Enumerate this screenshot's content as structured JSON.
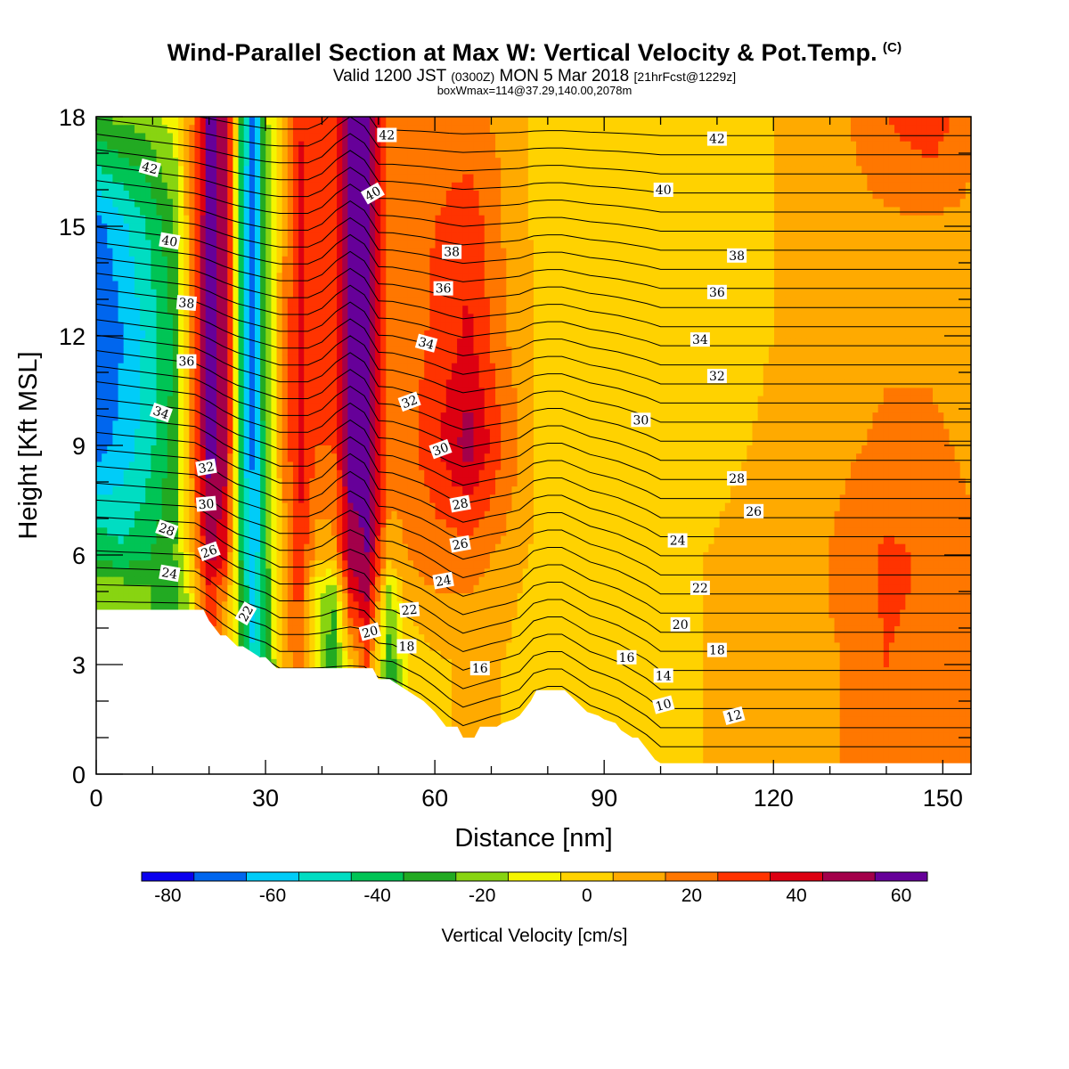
{
  "header": {
    "title": "Wind-Parallel Section at Max W: Vertical Velocity & Pot.Temp.",
    "title_mark": "(C)",
    "valid_prefix": "Valid 1200 JST",
    "valid_utc": "(0300Z)",
    "valid_date": "MON 5 Mar 2018",
    "valid_fcst": "[21hrFcst@1229z]",
    "box_info": "boxWmax=114@37.29,140.00,2078m"
  },
  "colorbar": {
    "title": "Vertical Velocity [cm/s]",
    "colors": [
      "#0a00ee",
      "#0066ee",
      "#00ccf8",
      "#00ddc2",
      "#00c455",
      "#22aa22",
      "#88d411",
      "#f5f500",
      "#ffd200",
      "#ffaa00",
      "#ff7700",
      "#ff3300",
      "#dd0011",
      "#a3004a",
      "#660099"
    ],
    "tick_labels": [
      "-80",
      "-60",
      "-40",
      "-20",
      "0",
      "20",
      "40",
      "60"
    ]
  },
  "chart_data": {
    "type": "heatmap",
    "title": "Wind-Parallel Section at Max W: Vertical Velocity & Pot.Temp.",
    "xlabel": "Distance [nm]",
    "ylabel": "Height [Kft MSL]",
    "xlim": [
      0,
      155
    ],
    "ylim": [
      0,
      18
    ],
    "x_ticks": [
      "0",
      "30",
      "60",
      "90",
      "120",
      "150"
    ],
    "y_ticks": [
      "0",
      "3",
      "6",
      "9",
      "12",
      "15",
      "18"
    ],
    "color_levels": [
      -80,
      -70,
      -60,
      -50,
      -40,
      -30,
      -20,
      -10,
      0,
      10,
      20,
      30,
      40,
      50,
      60,
      70
    ],
    "velocity_field_cm_s": {
      "x": [
        0,
        4,
        9,
        14,
        17,
        20,
        23,
        26,
        28,
        30,
        33,
        36,
        39,
        42,
        45,
        48,
        52,
        55,
        60,
        66,
        72,
        78,
        85,
        92,
        100,
        108,
        116,
        124,
        132,
        140,
        148,
        155
      ],
      "y": [
        0,
        3,
        5,
        6,
        9,
        12,
        15,
        18
      ],
      "rows": [
        [
          -10,
          -12,
          -16,
          -22,
          -5,
          30,
          10,
          -25,
          -55,
          -30,
          10,
          30,
          -5,
          -30,
          8,
          30,
          -28,
          0,
          8,
          12,
          10,
          2,
          0,
          2,
          5,
          10,
          12,
          15,
          20,
          30,
          25,
          20
        ],
        [
          -10,
          -12,
          -16,
          -22,
          -5,
          30,
          10,
          -25,
          -55,
          -30,
          10,
          30,
          -5,
          -30,
          8,
          30,
          -28,
          0,
          8,
          12,
          10,
          2,
          0,
          2,
          5,
          10,
          12,
          15,
          20,
          30,
          25,
          20
        ],
        [
          -10,
          -12,
          -18,
          -30,
          0,
          40,
          20,
          -30,
          -58,
          -30,
          15,
          35,
          -5,
          -20,
          40,
          55,
          -15,
          15,
          20,
          20,
          15,
          5,
          0,
          2,
          5,
          10,
          12,
          15,
          22,
          32,
          28,
          22
        ],
        [
          -30,
          -38,
          -32,
          -20,
          10,
          55,
          40,
          -40,
          -60,
          -25,
          15,
          40,
          15,
          15,
          55,
          60,
          15,
          20,
          25,
          25,
          18,
          8,
          2,
          2,
          5,
          10,
          12,
          15,
          22,
          32,
          28,
          22
        ],
        [
          -65,
          -58,
          -45,
          -25,
          25,
          65,
          55,
          -45,
          -65,
          -20,
          18,
          45,
          30,
          30,
          65,
          65,
          25,
          25,
          38,
          55,
          30,
          10,
          2,
          2,
          5,
          8,
          10,
          15,
          18,
          22,
          22,
          18
        ],
        [
          -70,
          -62,
          -48,
          -28,
          25,
          65,
          55,
          -45,
          -68,
          -18,
          18,
          45,
          30,
          30,
          65,
          65,
          25,
          25,
          32,
          42,
          22,
          8,
          2,
          0,
          2,
          5,
          8,
          12,
          15,
          18,
          18,
          15
        ],
        [
          -65,
          -55,
          -40,
          -20,
          25,
          65,
          55,
          -45,
          -68,
          -18,
          15,
          45,
          30,
          30,
          65,
          60,
          25,
          25,
          30,
          38,
          20,
          8,
          2,
          0,
          2,
          5,
          8,
          12,
          15,
          18,
          18,
          18
        ],
        [
          -20,
          -18,
          -15,
          -5,
          20,
          65,
          55,
          -40,
          -65,
          -15,
          15,
          40,
          30,
          30,
          65,
          60,
          22,
          22,
          22,
          22,
          18,
          8,
          2,
          0,
          2,
          5,
          8,
          12,
          18,
          30,
          38,
          22
        ]
      ]
    },
    "terrain_kft": {
      "x": [
        0,
        16,
        19,
        20,
        22,
        23,
        25,
        26,
        29,
        30,
        32,
        33,
        38,
        46,
        49,
        50,
        52,
        55,
        58,
        60,
        62,
        64,
        65,
        67,
        68,
        71,
        72,
        74,
        75,
        76,
        77,
        78,
        80,
        83,
        85,
        87,
        89,
        90,
        92,
        93,
        95,
        96,
        97,
        98,
        99,
        100,
        155
      ],
      "height": [
        4.5,
        4.5,
        4.5,
        4.2,
        3.8,
        3.8,
        3.5,
        3.5,
        3.2,
        3.2,
        2.9,
        2.9,
        2.9,
        2.9,
        2.9,
        2.6,
        2.6,
        2.3,
        2.0,
        1.7,
        1.3,
        1.3,
        1.0,
        1.0,
        1.3,
        1.3,
        1.4,
        1.5,
        1.6,
        1.8,
        2.0,
        2.3,
        2.3,
        2.3,
        2.0,
        1.7,
        1.6,
        1.5,
        1.4,
        1.2,
        1.0,
        1.0,
        0.8,
        0.6,
        0.4,
        0.3,
        0.3
      ]
    },
    "theta_contours_label": "Pot.Temp.",
    "theta_contour_labels": [
      {
        "x": 9.5,
        "y": 16.6,
        "v": "42",
        "r": 15
      },
      {
        "x": 13.0,
        "y": 14.6,
        "v": "40",
        "r": 10
      },
      {
        "x": 16.0,
        "y": 12.9,
        "v": "38",
        "r": 5
      },
      {
        "x": 16.0,
        "y": 11.3,
        "v": "36",
        "r": 0
      },
      {
        "x": 11.5,
        "y": 9.9,
        "v": "34",
        "r": 20
      },
      {
        "x": 19.5,
        "y": 8.4,
        "v": "32",
        "r": -10
      },
      {
        "x": 19.5,
        "y": 7.4,
        "v": "30",
        "r": -5
      },
      {
        "x": 12.5,
        "y": 6.7,
        "v": "28",
        "r": 20
      },
      {
        "x": 20.0,
        "y": 6.1,
        "v": "26",
        "r": -20
      },
      {
        "x": 13.0,
        "y": 5.5,
        "v": "24",
        "r": 10
      },
      {
        "x": 26.5,
        "y": 4.4,
        "v": "22",
        "r": -60
      },
      {
        "x": 51.5,
        "y": 17.5,
        "v": "42",
        "r": 0
      },
      {
        "x": 49.0,
        "y": 15.9,
        "v": "40",
        "r": -30
      },
      {
        "x": 63.0,
        "y": 14.3,
        "v": "38",
        "r": 0
      },
      {
        "x": 61.5,
        "y": 13.3,
        "v": "36",
        "r": 0
      },
      {
        "x": 58.5,
        "y": 11.8,
        "v": "34",
        "r": 15
      },
      {
        "x": 55.5,
        "y": 10.2,
        "v": "32",
        "r": -20
      },
      {
        "x": 61.0,
        "y": 8.9,
        "v": "30",
        "r": -20
      },
      {
        "x": 64.5,
        "y": 7.4,
        "v": "28",
        "r": -10
      },
      {
        "x": 64.5,
        "y": 6.3,
        "v": "26",
        "r": -10
      },
      {
        "x": 61.5,
        "y": 5.3,
        "v": "24",
        "r": -10
      },
      {
        "x": 55.5,
        "y": 4.5,
        "v": "22",
        "r": -5
      },
      {
        "x": 48.5,
        "y": 3.9,
        "v": "20",
        "r": -15
      },
      {
        "x": 55.0,
        "y": 3.5,
        "v": "18",
        "r": 0
      },
      {
        "x": 68.0,
        "y": 2.9,
        "v": "16",
        "r": 0
      },
      {
        "x": 110.0,
        "y": 17.4,
        "v": "42",
        "r": 0
      },
      {
        "x": 100.5,
        "y": 16.0,
        "v": "40",
        "r": 0
      },
      {
        "x": 113.5,
        "y": 14.2,
        "v": "38",
        "r": 0
      },
      {
        "x": 110.0,
        "y": 13.2,
        "v": "36",
        "r": 0
      },
      {
        "x": 107.0,
        "y": 11.9,
        "v": "34",
        "r": 0
      },
      {
        "x": 110.0,
        "y": 10.9,
        "v": "32",
        "r": 0
      },
      {
        "x": 96.5,
        "y": 9.7,
        "v": "30",
        "r": 0
      },
      {
        "x": 113.5,
        "y": 8.1,
        "v": "28",
        "r": 0
      },
      {
        "x": 116.5,
        "y": 7.2,
        "v": "26",
        "r": 0
      },
      {
        "x": 103.0,
        "y": 6.4,
        "v": "24",
        "r": 0
      },
      {
        "x": 107.0,
        "y": 5.1,
        "v": "22",
        "r": 0
      },
      {
        "x": 103.5,
        "y": 4.1,
        "v": "20",
        "r": 0
      },
      {
        "x": 110.0,
        "y": 3.4,
        "v": "18",
        "r": 0
      },
      {
        "x": 94.0,
        "y": 3.2,
        "v": "16",
        "r": 0
      },
      {
        "x": 100.5,
        "y": 2.7,
        "v": "14",
        "r": 0
      },
      {
        "x": 100.5,
        "y": 1.9,
        "v": "10",
        "r": -15
      },
      {
        "x": 113.0,
        "y": 1.6,
        "v": "12",
        "r": -15
      }
    ]
  }
}
